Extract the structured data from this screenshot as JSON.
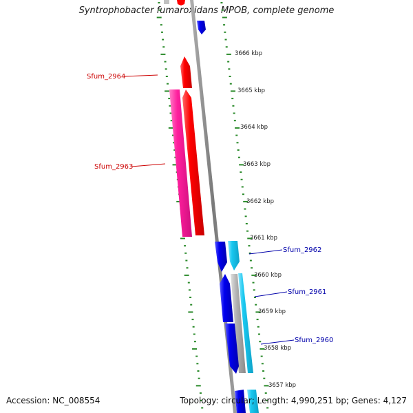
{
  "title": "Syntrophobacter fumaroxidans MPOB, complete genome",
  "accession": "Accession: NC_008554",
  "summary": "Topology: circular; Length: 4,990,251 bp; Genes: 4,127",
  "scale_labels": [
    "3666 kbp",
    "3665 kbp",
    "3664 kbp",
    "3663 kbp",
    "3662 kbp",
    "3661 kbp",
    "3660 kbp",
    "3659 kbp",
    "3658 kbp",
    "3657 kbp"
  ],
  "gene_labels": [
    {
      "text": "Sfum_2964",
      "color": "#cc0000"
    },
    {
      "text": "Sfum_2963",
      "color": "#cc0000"
    },
    {
      "text": "Sfum_2962",
      "color": "#0000aa"
    },
    {
      "text": "Sfum_2961",
      "color": "#0000aa"
    },
    {
      "text": "Sfum_2960",
      "color": "#0000aa"
    }
  ],
  "colors": {
    "backbone": "#8c8c8c",
    "tick_green": "#2a8a2a",
    "red_gene": "#ff0000",
    "magenta_gene": "#ff1f9e",
    "blue_gene": "#0000ee",
    "cyan_gene": "#19c8f0",
    "gray_gene": "#b0b0b0"
  }
}
